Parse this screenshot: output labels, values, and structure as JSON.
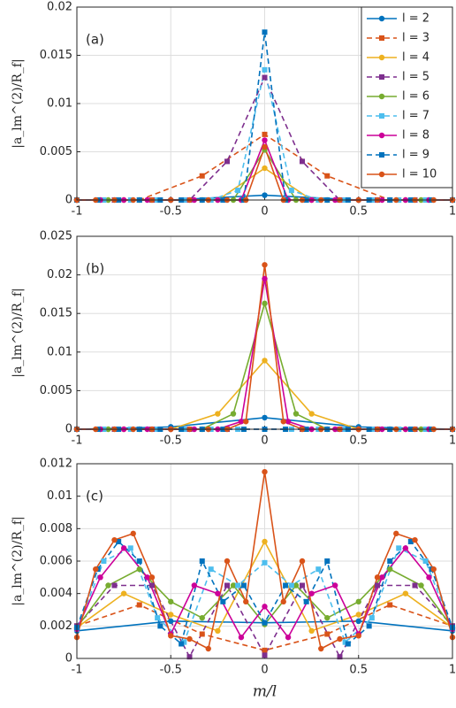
{
  "chart_data": [
    {
      "type": "line",
      "annotation": "(a)",
      "ylabel": "|a_lm^(2)/R_f|",
      "xlim": [
        -1,
        1
      ],
      "ylim": [
        0,
        0.02
      ],
      "xticks": [
        -1,
        -0.5,
        0,
        0.5,
        1
      ],
      "yticks": [
        0,
        0.005,
        0.01,
        0.015,
        0.02
      ],
      "grid": true,
      "legend": "northeast",
      "series": [
        {
          "name": "l = 2",
          "color": "#0072bd",
          "dash": false,
          "marker": "circle",
          "x": [
            -1,
            -0.5,
            0,
            0.5,
            1
          ],
          "values": [
            0,
            0,
            0.0005,
            0,
            0
          ]
        },
        {
          "name": "l = 3",
          "color": "#d95319",
          "dash": true,
          "marker": "square",
          "x": [
            -1,
            -0.667,
            -0.333,
            0,
            0.333,
            0.667,
            1
          ],
          "values": [
            0,
            0,
            0.0025,
            0.0068,
            0.0025,
            0,
            0
          ]
        },
        {
          "name": "l = 4",
          "color": "#edb120",
          "dash": false,
          "marker": "circle",
          "x": [
            -1,
            -0.75,
            -0.5,
            -0.25,
            0,
            0.25,
            0.5,
            0.75,
            1
          ],
          "values": [
            0,
            0,
            0,
            0,
            0.0033,
            0,
            0,
            0,
            0
          ]
        },
        {
          "name": "l = 5",
          "color": "#7e2f8e",
          "dash": true,
          "marker": "square",
          "x": [
            -1,
            -0.8,
            -0.6,
            -0.4,
            -0.2,
            0,
            0.2,
            0.4,
            0.6,
            0.8,
            1
          ],
          "values": [
            0,
            0,
            0,
            0,
            0.004,
            0.0127,
            0.004,
            0,
            0,
            0,
            0
          ]
        },
        {
          "name": "l = 6",
          "color": "#77ac30",
          "dash": false,
          "marker": "circle",
          "x": [
            -1,
            -0.833,
            -0.667,
            -0.5,
            -0.333,
            -0.167,
            0,
            0.167,
            0.333,
            0.5,
            0.667,
            0.833,
            1
          ],
          "values": [
            0,
            0,
            0,
            0,
            0,
            0,
            0.0052,
            0,
            0,
            0,
            0,
            0,
            0
          ]
        },
        {
          "name": "l = 7",
          "color": "#4dbeee",
          "dash": true,
          "marker": "square",
          "x": [
            -1,
            -0.857,
            -0.714,
            -0.571,
            -0.429,
            -0.286,
            -0.143,
            0,
            0.143,
            0.286,
            0.429,
            0.571,
            0.714,
            0.857,
            1
          ],
          "values": [
            0,
            0,
            0,
            0,
            0,
            0,
            0.001,
            0.0135,
            0.001,
            0,
            0,
            0,
            0,
            0,
            0
          ]
        },
        {
          "name": "l = 8",
          "color": "#cc0099",
          "dash": false,
          "marker": "circle",
          "x": [
            -1,
            -0.875,
            -0.75,
            -0.625,
            -0.5,
            -0.375,
            -0.25,
            -0.125,
            0,
            0.125,
            0.25,
            0.375,
            0.5,
            0.625,
            0.75,
            0.875,
            1
          ],
          "values": [
            0,
            0,
            0,
            0,
            0,
            0,
            0,
            0,
            0.0062,
            0,
            0,
            0,
            0,
            0,
            0,
            0,
            0
          ]
        },
        {
          "name": "l = 9",
          "color": "#0072bd",
          "dash": true,
          "marker": "square",
          "x": [
            -1,
            -0.889,
            -0.778,
            -0.667,
            -0.556,
            -0.444,
            -0.333,
            -0.222,
            -0.111,
            0,
            0.111,
            0.222,
            0.333,
            0.444,
            0.556,
            0.667,
            0.778,
            0.889,
            1
          ],
          "values": [
            0,
            0,
            0,
            0,
            0,
            0,
            0,
            0,
            0,
            0.0174,
            0,
            0,
            0,
            0,
            0,
            0,
            0,
            0,
            0
          ]
        },
        {
          "name": "l = 10",
          "color": "#d95319",
          "dash": false,
          "marker": "circle",
          "x": [
            -1,
            -0.9,
            -0.8,
            -0.7,
            -0.6,
            -0.5,
            -0.4,
            -0.3,
            -0.2,
            -0.1,
            0,
            0.1,
            0.2,
            0.3,
            0.4,
            0.5,
            0.6,
            0.7,
            0.8,
            0.9,
            1
          ],
          "values": [
            0,
            0,
            0,
            0,
            0,
            0,
            0,
            0,
            0,
            0,
            0.0055,
            0,
            0,
            0,
            0,
            0,
            0,
            0,
            0,
            0,
            0
          ]
        }
      ]
    },
    {
      "type": "line",
      "annotation": "(b)",
      "ylabel": "|a_lm^(2)/R_f|",
      "xlim": [
        -1,
        1
      ],
      "ylim": [
        0,
        0.025
      ],
      "xticks": [
        -1,
        -0.5,
        0,
        0.5,
        1
      ],
      "yticks": [
        0,
        0.005,
        0.01,
        0.015,
        0.02,
        0.025
      ],
      "grid": true,
      "series": [
        {
          "color": "#0072bd",
          "dash": false,
          "marker": "circle",
          "x": [
            -1,
            -0.5,
            0,
            0.5,
            1
          ],
          "values": [
            0,
            0.0003,
            0.0015,
            0.0003,
            0
          ]
        },
        {
          "color": "#d95319",
          "dash": true,
          "marker": "square",
          "x": [
            -1,
            -0.667,
            -0.333,
            0,
            0.333,
            0.667,
            1
          ],
          "values": [
            0,
            0,
            0,
            0,
            0,
            0,
            0
          ]
        },
        {
          "color": "#edb120",
          "dash": false,
          "marker": "circle",
          "x": [
            -1,
            -0.75,
            -0.5,
            -0.25,
            0,
            0.25,
            0.5,
            0.75,
            1
          ],
          "values": [
            0,
            0,
            0,
            0.002,
            0.0089,
            0.002,
            0,
            0,
            0
          ]
        },
        {
          "color": "#7e2f8e",
          "dash": true,
          "marker": "square",
          "x": [
            -1,
            -0.8,
            -0.6,
            -0.4,
            -0.2,
            0,
            0.2,
            0.4,
            0.6,
            0.8,
            1
          ],
          "values": [
            0,
            0,
            0,
            0,
            0,
            0,
            0,
            0,
            0,
            0,
            0
          ]
        },
        {
          "color": "#77ac30",
          "dash": false,
          "marker": "circle",
          "x": [
            -1,
            -0.833,
            -0.667,
            -0.5,
            -0.333,
            -0.167,
            0,
            0.167,
            0.333,
            0.5,
            0.667,
            0.833,
            1
          ],
          "values": [
            0,
            0,
            0,
            0,
            0,
            0.002,
            0.0163,
            0.002,
            0,
            0,
            0,
            0,
            0
          ]
        },
        {
          "color": "#4dbeee",
          "dash": true,
          "marker": "square",
          "x": [
            -1,
            -0.857,
            -0.714,
            -0.571,
            -0.429,
            -0.286,
            -0.143,
            0,
            0.143,
            0.286,
            0.429,
            0.571,
            0.714,
            0.857,
            1
          ],
          "values": [
            0,
            0,
            0,
            0,
            0,
            0,
            0,
            0,
            0,
            0,
            0,
            0,
            0,
            0,
            0
          ]
        },
        {
          "color": "#cc0099",
          "dash": false,
          "marker": "circle",
          "x": [
            -1,
            -0.875,
            -0.75,
            -0.625,
            -0.5,
            -0.375,
            -0.25,
            -0.125,
            0,
            0.125,
            0.25,
            0.375,
            0.5,
            0.625,
            0.75,
            0.875,
            1
          ],
          "values": [
            0,
            0,
            0,
            0,
            0,
            0,
            0,
            0.001,
            0.0195,
            0.001,
            0,
            0,
            0,
            0,
            0,
            0,
            0
          ]
        },
        {
          "color": "#0072bd",
          "dash": true,
          "marker": "square",
          "x": [
            -1,
            -0.889,
            -0.778,
            -0.667,
            -0.556,
            -0.444,
            -0.333,
            -0.222,
            -0.111,
            0,
            0.111,
            0.222,
            0.333,
            0.444,
            0.556,
            0.667,
            0.778,
            0.889,
            1
          ],
          "values": [
            0,
            0,
            0,
            0,
            0,
            0,
            0,
            0,
            0,
            0,
            0,
            0,
            0,
            0,
            0,
            0,
            0,
            0,
            0
          ]
        },
        {
          "color": "#d95319",
          "dash": false,
          "marker": "circle",
          "x": [
            -1,
            -0.9,
            -0.8,
            -0.7,
            -0.6,
            -0.5,
            -0.4,
            -0.3,
            -0.2,
            -0.1,
            0,
            0.1,
            0.2,
            0.3,
            0.4,
            0.5,
            0.6,
            0.7,
            0.8,
            0.9,
            1
          ],
          "values": [
            0,
            0,
            0,
            0,
            0,
            0,
            0,
            0,
            0,
            0.001,
            0.0213,
            0.001,
            0,
            0,
            0,
            0,
            0,
            0,
            0,
            0,
            0
          ]
        }
      ]
    },
    {
      "type": "line",
      "annotation": "(c)",
      "ylabel": "|a_lm^(2)/R_f|",
      "xlabel": "m/l",
      "xlim": [
        -1,
        1
      ],
      "ylim": [
        0,
        0.012
      ],
      "xticks": [
        -1,
        -0.5,
        0,
        0.5,
        1
      ],
      "yticks": [
        0,
        0.002,
        0.004,
        0.006,
        0.008,
        0.01,
        0.012
      ],
      "grid": true,
      "series": [
        {
          "color": "#0072bd",
          "dash": false,
          "marker": "circle",
          "x": [
            -1,
            -0.5,
            0,
            0.5,
            1
          ],
          "values": [
            0.0017,
            0.0023,
            0.0022,
            0.0023,
            0.0017
          ]
        },
        {
          "color": "#d95319",
          "dash": true,
          "marker": "square",
          "x": [
            -1,
            -0.667,
            -0.333,
            0,
            0.333,
            0.667,
            1
          ],
          "values": [
            0.002,
            0.0033,
            0.0015,
            0.0005,
            0.0015,
            0.0033,
            0.002
          ]
        },
        {
          "color": "#edb120",
          "dash": false,
          "marker": "circle",
          "x": [
            -1,
            -0.75,
            -0.5,
            -0.25,
            0,
            0.25,
            0.5,
            0.75,
            1
          ],
          "values": [
            0.0019,
            0.004,
            0.0027,
            0.0017,
            0.0072,
            0.0017,
            0.0027,
            0.004,
            0.0019
          ]
        },
        {
          "color": "#7e2f8e",
          "dash": true,
          "marker": "square",
          "x": [
            -1,
            -0.8,
            -0.6,
            -0.4,
            -0.2,
            0,
            0.2,
            0.4,
            0.6,
            0.8,
            1
          ],
          "values": [
            0.002,
            0.0045,
            0.0045,
            0.0001,
            0.0045,
            0.0002,
            0.0045,
            0.0001,
            0.0045,
            0.0045,
            0.002
          ]
        },
        {
          "color": "#77ac30",
          "dash": false,
          "marker": "circle",
          "x": [
            -1,
            -0.833,
            -0.667,
            -0.5,
            -0.333,
            -0.167,
            0,
            0.167,
            0.333,
            0.5,
            0.667,
            0.833,
            1
          ],
          "values": [
            0.0019,
            0.0045,
            0.0055,
            0.0035,
            0.0025,
            0.0045,
            0.0021,
            0.0045,
            0.0025,
            0.0035,
            0.0055,
            0.0045,
            0.0019
          ]
        },
        {
          "color": "#4dbeee",
          "dash": true,
          "marker": "square",
          "x": [
            -1,
            -0.857,
            -0.714,
            -0.571,
            -0.429,
            -0.286,
            -0.143,
            0,
            0.143,
            0.286,
            0.429,
            0.571,
            0.714,
            0.857,
            1
          ],
          "values": [
            0.0018,
            0.006,
            0.0068,
            0.0025,
            0.001,
            0.0055,
            0.0045,
            0.0059,
            0.0045,
            0.0055,
            0.001,
            0.0025,
            0.0068,
            0.006,
            0.0018
          ]
        },
        {
          "color": "#cc0099",
          "dash": false,
          "marker": "circle",
          "x": [
            -1,
            -0.875,
            -0.75,
            -0.625,
            -0.5,
            -0.375,
            -0.25,
            -0.125,
            0,
            0.125,
            0.25,
            0.375,
            0.5,
            0.625,
            0.75,
            0.875,
            1
          ],
          "values": [
            0.0018,
            0.005,
            0.0068,
            0.005,
            0.0015,
            0.0045,
            0.004,
            0.0013,
            0.0032,
            0.0013,
            0.004,
            0.0045,
            0.0015,
            0.005,
            0.0068,
            0.005,
            0.0018
          ]
        },
        {
          "color": "#0072bd",
          "dash": true,
          "marker": "square",
          "x": [
            -1,
            -0.889,
            -0.778,
            -0.667,
            -0.556,
            -0.444,
            -0.333,
            -0.222,
            -0.111,
            0,
            0.111,
            0.222,
            0.333,
            0.444,
            0.556,
            0.667,
            0.778,
            0.889,
            1
          ],
          "values": [
            0.0019,
            0.0055,
            0.0072,
            0.006,
            0.002,
            0.0009,
            0.006,
            0.0035,
            0.0045,
            0.0022,
            0.0045,
            0.0035,
            0.006,
            0.0009,
            0.002,
            0.006,
            0.0072,
            0.0055,
            0.0019
          ]
        },
        {
          "color": "#d95319",
          "dash": false,
          "marker": "circle",
          "x": [
            -1,
            -0.9,
            -0.8,
            -0.7,
            -0.6,
            -0.5,
            -0.4,
            -0.3,
            -0.2,
            -0.1,
            0,
            0.1,
            0.2,
            0.3,
            0.4,
            0.5,
            0.6,
            0.7,
            0.8,
            0.9,
            1
          ],
          "values": [
            0.0013,
            0.0055,
            0.0073,
            0.0077,
            0.005,
            0.0014,
            0.0012,
            0.0006,
            0.006,
            0.0035,
            0.0115,
            0.0035,
            0.006,
            0.0006,
            0.0012,
            0.0014,
            0.005,
            0.0077,
            0.0073,
            0.0055,
            0.0013
          ]
        }
      ]
    }
  ]
}
